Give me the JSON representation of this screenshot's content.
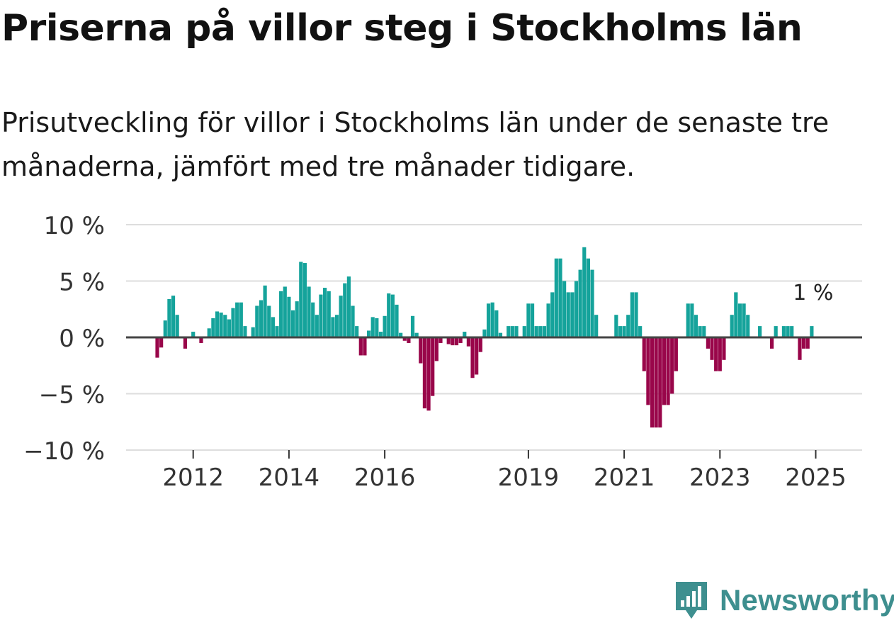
{
  "title": "Priserna på villor steg i Stockholms län",
  "subtitle": "Prisutveckling för villor i Stockholms län under de senaste tre månaderna, jämfört med tre månader tidigare.",
  "brand": "Newsworthy",
  "colors": {
    "positive": "#15a39b",
    "negative": "#99064a",
    "brand": "#3e8f8f",
    "grid": "#dddddd",
    "zero": "#444444"
  },
  "chart_data": {
    "type": "bar",
    "title": "Priserna på villor steg i Stockholms län",
    "xlabel": "",
    "ylabel": "",
    "ylim": [
      -10,
      10
    ],
    "x_start": 2011.25,
    "x_step": 0.0833333,
    "y_ticks": [
      10,
      5,
      0,
      -5,
      -10
    ],
    "y_tick_labels": [
      "10 %",
      "5 %",
      "0 %",
      "−5 %",
      "−10 %"
    ],
    "x_ticks": [
      2012,
      2014,
      2016,
      2019,
      2021,
      2023,
      2025
    ],
    "x_tick_labels": [
      "2012",
      "2014",
      "2016",
      "2019",
      "2021",
      "2023",
      "2025"
    ],
    "last_value_label": "1 %",
    "values": [
      -1.8,
      -0.9,
      1.5,
      3.4,
      3.7,
      2.0,
      0,
      -1.0,
      0,
      0.5,
      0,
      -0.5,
      0,
      0.8,
      1.7,
      2.3,
      2.2,
      2.0,
      1.6,
      2.6,
      3.1,
      3.1,
      1.0,
      0,
      0.9,
      2.8,
      3.3,
      4.6,
      2.8,
      1.8,
      1.0,
      4.1,
      4.5,
      3.6,
      2.4,
      3.2,
      6.7,
      6.6,
      4.5,
      3.1,
      2.0,
      3.8,
      4.4,
      4.1,
      1.8,
      2.0,
      3.7,
      4.8,
      5.4,
      2.8,
      1.0,
      -1.6,
      -1.6,
      0.6,
      1.8,
      1.7,
      0.5,
      1.9,
      3.9,
      3.8,
      2.9,
      0.4,
      -0.3,
      -0.5,
      1.9,
      0.4,
      -2.3,
      -6.3,
      -6.5,
      -5.2,
      -2.1,
      -0.5,
      0,
      -0.6,
      -0.7,
      -0.7,
      -0.5,
      0.5,
      -0.8,
      -3.6,
      -3.3,
      -1.3,
      0.7,
      3.0,
      3.1,
      2.4,
      0.4,
      0,
      1.0,
      1.0,
      1.0,
      0,
      1.0,
      3.0,
      3.0,
      1.0,
      1.0,
      1.0,
      3.0,
      4.0,
      7.0,
      7.0,
      5.0,
      4.0,
      4.0,
      5.0,
      6.0,
      8.0,
      7.0,
      6.0,
      2.0,
      0,
      0,
      0,
      0,
      2.0,
      1.0,
      1.0,
      2.0,
      4.0,
      4.0,
      1.0,
      -3.0,
      -6.0,
      -8.0,
      -8.0,
      -8.0,
      -6.0,
      -6.0,
      -5.0,
      -3.0,
      0,
      0,
      3.0,
      3.0,
      2.0,
      1.0,
      1.0,
      -1.0,
      -2.0,
      -3.0,
      -3.0,
      -2.0,
      0,
      2.0,
      4.0,
      3.0,
      3.0,
      2.0,
      0,
      0,
      1.0,
      0,
      0,
      -1.0,
      1.0,
      0,
      1.0,
      1.0,
      1.0,
      0,
      -2.0,
      -1.0,
      -1.0,
      1.0
    ]
  }
}
